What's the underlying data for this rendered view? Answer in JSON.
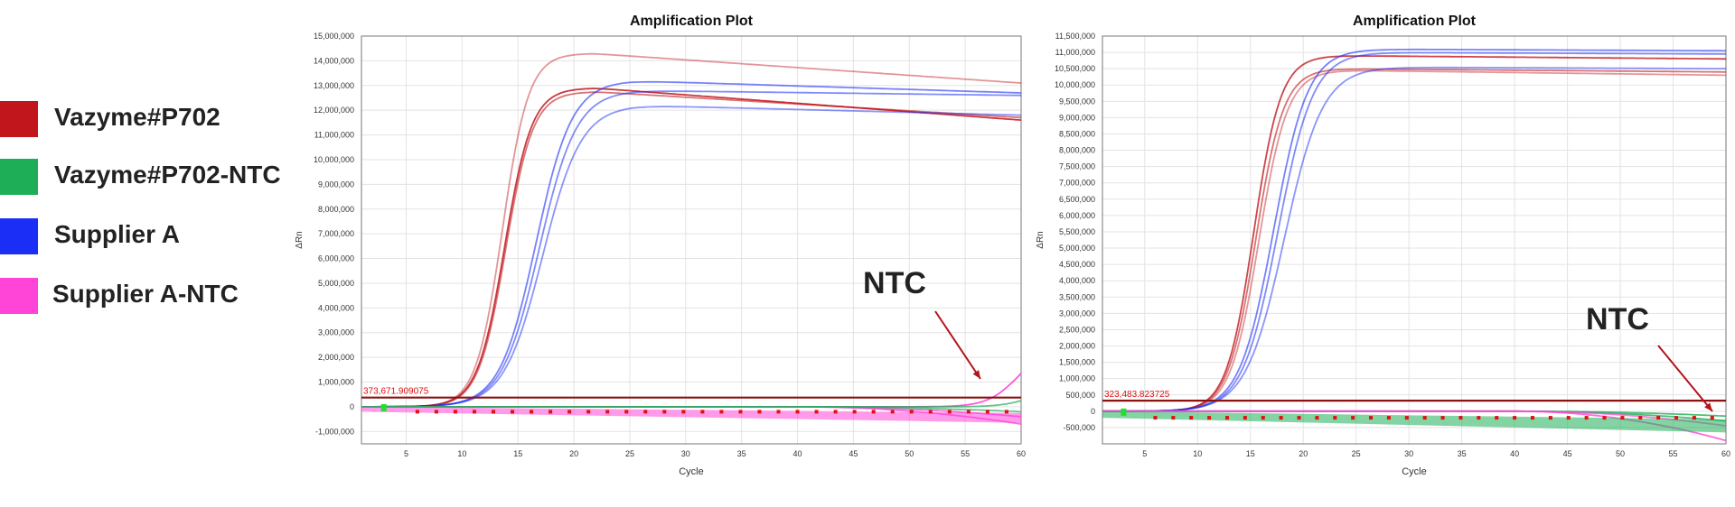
{
  "legend": {
    "items": [
      {
        "label": "Vazyme#P702",
        "color": "#c0161c"
      },
      {
        "label": "Vazyme#P702-NTC",
        "color": "#1fae58"
      },
      {
        "label": "Supplier A",
        "color": "#1a2ef5"
      },
      {
        "label": "Supplier A-NTC",
        "color": "#ff45d8"
      }
    ]
  },
  "chart_data": [
    {
      "type": "line",
      "title": "Amplification Plot",
      "xlabel": "Cycle",
      "ylabel": "ΔRn",
      "xlim": [
        1,
        60
      ],
      "ylim": [
        -1500000,
        15000000
      ],
      "x_ticks": [
        5,
        10,
        15,
        20,
        25,
        30,
        35,
        40,
        45,
        50,
        55,
        60
      ],
      "y_ticks": [
        -1000000,
        0,
        1000000,
        2000000,
        3000000,
        4000000,
        5000000,
        6000000,
        7000000,
        8000000,
        9000000,
        10000000,
        11000000,
        12000000,
        13000000,
        14000000,
        15000000
      ],
      "y_tick_labels": [
        "-1,000,000",
        "0",
        "1,000,000",
        "2,000,000",
        "3,000,000",
        "4,000,000",
        "5,000,000",
        "6,000,000",
        "7,000,000",
        "8,000,000",
        "9,000,000",
        "10,000,000",
        "11,000,000",
        "12,000,000",
        "13,000,000",
        "14,000,000",
        "15,000,000"
      ],
      "grid": true,
      "threshold": 373671.909075,
      "threshold_label": "373,671.909075",
      "annotation": "NTC",
      "series": [
        {
          "group": "Vazyme#P702",
          "color": "#c0161c",
          "opacity": 0.85,
          "ct": 9.8,
          "k": 0.82,
          "plateau": 12900000,
          "end": 11600000
        },
        {
          "group": "Vazyme#P702",
          "color": "#c0161c",
          "opacity": 0.6,
          "ct": 9.9,
          "k": 0.82,
          "plateau": 12750000,
          "end": 11700000
        },
        {
          "group": "Vazyme#P702",
          "color": "#c0161c",
          "opacity": 0.45,
          "ct": 9.6,
          "k": 0.85,
          "plateau": 14300000,
          "end": 13100000
        },
        {
          "group": "Supplier A",
          "color": "#1a2ef5",
          "opacity": 0.6,
          "ct": 12.6,
          "k": 0.62,
          "plateau": 13200000,
          "end": 12700000
        },
        {
          "group": "Supplier A",
          "color": "#1a2ef5",
          "opacity": 0.55,
          "ct": 12.9,
          "k": 0.6,
          "plateau": 12800000,
          "end": 12600000
        },
        {
          "group": "Supplier A",
          "color": "#1a2ef5",
          "opacity": 0.5,
          "ct": 13.2,
          "k": 0.58,
          "plateau": 12200000,
          "end": 11800000
        },
        {
          "group": "Supplier A-NTC",
          "color": "#ff45d8",
          "opacity": 0.9,
          "ct": 55.5,
          "k": 0.7,
          "plateau": 3200000,
          "end": 2300000
        },
        {
          "group": "Supplier A-NTC",
          "color": "#ff45d8",
          "opacity": 0.8,
          "baseline_end": -700000
        },
        {
          "group": "Supplier A-NTC",
          "color": "#ff45d8",
          "opacity": 0.8,
          "baseline_end": -400000
        },
        {
          "group": "Vazyme#P702-NTC",
          "color": "#1fae58",
          "opacity": 0.7,
          "ct": 57,
          "k": 0.6,
          "plateau": 1500000,
          "end": 700000
        },
        {
          "group": "Vazyme#P702-NTC",
          "color": "#1fae58",
          "opacity": 0.7,
          "baseline_end": -200000
        }
      ]
    },
    {
      "type": "line",
      "title": "Amplification Plot",
      "xlabel": "Cycle",
      "ylabel": "ΔRn",
      "xlim": [
        1,
        60
      ],
      "ylim": [
        -1000000,
        11500000
      ],
      "x_ticks": [
        5,
        10,
        15,
        20,
        25,
        30,
        35,
        40,
        45,
        50,
        55,
        60
      ],
      "y_ticks": [
        -500000,
        0,
        500000,
        1000000,
        1500000,
        2000000,
        2500000,
        3000000,
        3500000,
        4000000,
        4500000,
        5000000,
        5500000,
        6000000,
        6500000,
        7000000,
        7500000,
        8000000,
        8500000,
        9000000,
        9500000,
        10000000,
        10500000,
        11000000,
        11500000
      ],
      "y_tick_labels": [
        "-500,000",
        "0",
        "500,000",
        "1,000,000",
        "1,500,000",
        "2,000,000",
        "2,500,000",
        "3,000,000",
        "3,500,000",
        "4,000,000",
        "4,500,000",
        "5,000,000",
        "5,500,000",
        "6,000,000",
        "6,500,000",
        "7,000,000",
        "7,500,000",
        "8,000,000",
        "8,500,000",
        "9,000,000",
        "9,500,000",
        "10,000,000",
        "10,500,000",
        "11,000,000",
        "11,500,000"
      ],
      "grid": true,
      "threshold": 323483.823725,
      "threshold_label": "323,483.823725",
      "annotation": "NTC",
      "series": [
        {
          "group": "Vazyme#P702",
          "color": "#c0161c",
          "opacity": 0.8,
          "ct": 11.3,
          "k": 0.78,
          "plateau": 10900000,
          "end": 10800000
        },
        {
          "group": "Vazyme#P702",
          "color": "#c0161c",
          "opacity": 0.6,
          "ct": 11.5,
          "k": 0.76,
          "plateau": 10500000,
          "end": 10400000
        },
        {
          "group": "Vazyme#P702",
          "color": "#c0161c",
          "opacity": 0.45,
          "ct": 11.8,
          "k": 0.74,
          "plateau": 10450000,
          "end": 10300000
        },
        {
          "group": "Supplier A",
          "color": "#1a2ef5",
          "opacity": 0.6,
          "ct": 13.2,
          "k": 0.62,
          "plateau": 11100000,
          "end": 11050000
        },
        {
          "group": "Supplier A",
          "color": "#1a2ef5",
          "opacity": 0.55,
          "ct": 13.6,
          "k": 0.6,
          "plateau": 11000000,
          "end": 10950000
        },
        {
          "group": "Supplier A",
          "color": "#1a2ef5",
          "opacity": 0.5,
          "ct": 14.2,
          "k": 0.55,
          "plateau": 10550000,
          "end": 10500000
        },
        {
          "group": "Vazyme#P702-NTC",
          "color": "#1fae58",
          "opacity": 0.8,
          "baseline_end": -150000
        },
        {
          "group": "Vazyme#P702-NTC",
          "color": "#1fae58",
          "opacity": 0.8,
          "baseline_end": -300000
        },
        {
          "group": "Supplier A-NTC",
          "color": "#ff45d8",
          "opacity": 0.8,
          "baseline_end": -900000
        },
        {
          "group": "Supplier A-NTC",
          "color": "#ff45d8",
          "opacity": 0.7,
          "baseline_end": -450000
        }
      ]
    }
  ]
}
